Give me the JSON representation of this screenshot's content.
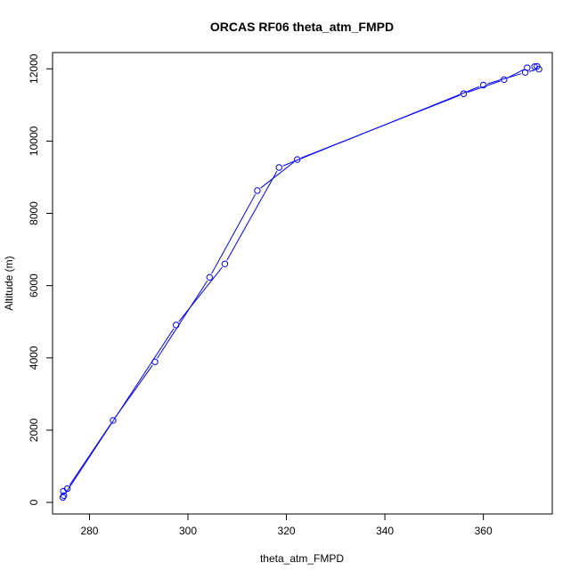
{
  "chart_data": {
    "type": "line",
    "title": "ORCAS RF06 theta_atm_FMPD",
    "xlabel": "theta_atm_FMPD",
    "ylabel": "Altitude (m)",
    "xlim": [
      272.5,
      374.0
    ],
    "ylim": [
      -320,
      12450
    ],
    "x_ticks": [
      280,
      300,
      320,
      340,
      360
    ],
    "y_ticks": [
      0,
      2000,
      4000,
      6000,
      8000,
      10000,
      12000
    ],
    "grid": false,
    "legend": "none",
    "style": "points-and-lines",
    "colors": {
      "series": "#0000ff",
      "axes": "#000000",
      "background": "#ffffff"
    },
    "series": [
      {
        "x": [
          274.8,
          274.7,
          275.5,
          284.8,
          293.3,
          304.4,
          314.1,
          322.2,
          356.0,
          364.2,
          368.9,
          370.4,
          370.9,
          371.3,
          368.5,
          360.0,
          318.5,
          307.5,
          297.6,
          274.6
        ],
        "y": [
          190,
          310,
          380,
          2270,
          3890,
          6230,
          8630,
          9490,
          11310,
          11700,
          12030,
          12060,
          12070,
          11990,
          11900,
          11550,
          9270,
          6600,
          4910,
          140
        ]
      }
    ]
  }
}
